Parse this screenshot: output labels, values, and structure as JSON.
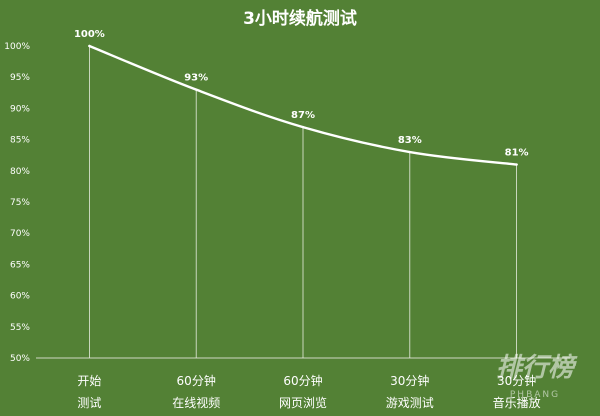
{
  "chart_data": {
    "type": "line",
    "title": "3小时续航测试",
    "categories": [
      [
        "开始",
        "测试"
      ],
      [
        "60分钟",
        "在线视频"
      ],
      [
        "60分钟",
        "网页浏览"
      ],
      [
        "30分钟",
        "游戏测试"
      ],
      [
        "30分钟",
        "音乐播放"
      ]
    ],
    "values": [
      100,
      93,
      87,
      83,
      81
    ],
    "data_labels": [
      "100%",
      "93%",
      "87%",
      "83%",
      "81%"
    ],
    "ylim": [
      50,
      100
    ],
    "y_ticks": [
      "50%",
      "55%",
      "60%",
      "65%",
      "70%",
      "75%",
      "80%",
      "85%",
      "90%",
      "95%",
      "100%"
    ],
    "xlabel": "",
    "ylabel": "",
    "grid": false,
    "drop_lines": true,
    "legend": "none",
    "colors": {
      "background": "#538135",
      "line": "#ffffff",
      "text": "#ffffff"
    }
  },
  "watermark": {
    "main": "排行榜",
    "sub": "PHBANG"
  }
}
